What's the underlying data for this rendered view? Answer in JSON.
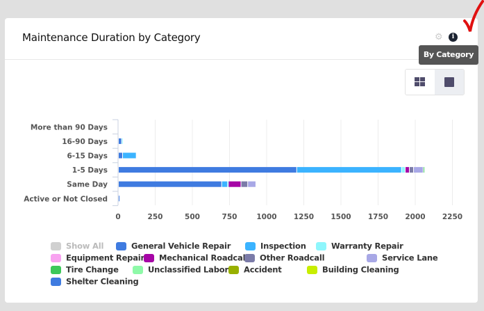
{
  "card": {
    "title": "Maintenance Duration by Category",
    "tooltip": "By Category",
    "icons": [
      "gear-icon",
      "info-icon",
      "grid-view-icon",
      "single-view-icon"
    ]
  },
  "legend": {
    "show_all_label": "Show All"
  },
  "chart_data": {
    "type": "bar",
    "orientation": "horizontal",
    "stacked": true,
    "title": "Maintenance Duration by Category",
    "xlabel": "",
    "ylabel": "",
    "xlim": [
      0,
      2250
    ],
    "xticks": [
      "0",
      "250",
      "500",
      "750",
      "1000",
      "1250",
      "1500",
      "1750",
      "2000",
      "2250"
    ],
    "xtick_values": [
      0,
      250,
      500,
      750,
      1000,
      1250,
      1500,
      1750,
      2000,
      2250
    ],
    "grid": "vertical",
    "legend_position": "bottom",
    "categories": [
      "More than 90 Days",
      "16-90 Days",
      "6-15 Days",
      "1-5 Days",
      "Same Day",
      "Active or Not Closed"
    ],
    "series": [
      {
        "name": "General Vehicle Repair",
        "color": "#3f7be0",
        "values": [
          0,
          22,
          28,
          1200,
          695,
          5
        ]
      },
      {
        "name": "Inspection",
        "color": "#3bb3ff",
        "values": [
          0,
          0,
          92,
          705,
          40,
          0
        ]
      },
      {
        "name": "Warranty Repair",
        "color": "#8ef6fc",
        "values": [
          0,
          5,
          0,
          25,
          5,
          0
        ]
      },
      {
        "name": "Equipment Repair",
        "color": "#f8a3f0",
        "values": [
          0,
          0,
          0,
          0,
          0,
          0
        ]
      },
      {
        "name": "Mechanical Roadcall",
        "color": "#a606a6",
        "values": [
          0,
          0,
          0,
          28,
          85,
          0
        ]
      },
      {
        "name": "Other Roadcall",
        "color": "#7b7ba8",
        "values": [
          0,
          0,
          0,
          28,
          45,
          0
        ]
      },
      {
        "name": "Service Lane",
        "color": "#a8a8e6",
        "values": [
          0,
          0,
          0,
          65,
          55,
          0
        ]
      },
      {
        "name": "Tire Change",
        "color": "#3dc85a",
        "values": [
          0,
          0,
          0,
          5,
          0,
          0
        ]
      },
      {
        "name": "Unclassified Labor",
        "color": "#8ef9a8",
        "values": [
          0,
          0,
          0,
          0,
          0,
          0
        ]
      },
      {
        "name": "Accident",
        "color": "#98b000",
        "values": [
          0,
          0,
          0,
          0,
          0,
          0
        ]
      },
      {
        "name": "Building Cleaning",
        "color": "#c8ee00",
        "values": [
          0,
          0,
          0,
          0,
          0,
          0
        ]
      },
      {
        "name": "Shelter Cleaning",
        "color": "#3f7be0",
        "values": [
          0,
          0,
          0,
          0,
          0,
          0
        ]
      }
    ]
  }
}
